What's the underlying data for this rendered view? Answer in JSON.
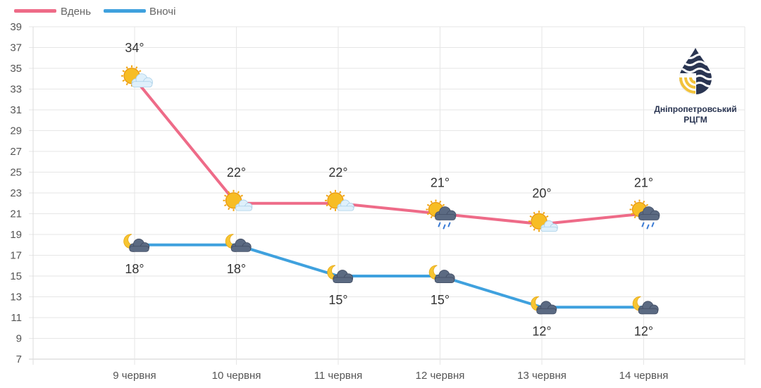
{
  "chart_data": {
    "type": "line",
    "categories": [
      "9 червня",
      "10 червня",
      "11 червня",
      "12 червня",
      "13 червня",
      "14 червня"
    ],
    "series": [
      {
        "name": "Вдень",
        "color": "#ee6b88",
        "values": [
          34,
          22,
          22,
          21,
          20,
          21
        ],
        "labels": [
          "34°",
          "22°",
          "22°",
          "21°",
          "20°",
          "21°"
        ],
        "icons": [
          "sun-cloud-icon",
          "sun-cloud-icon",
          "sun-cloud-icon",
          "sun-rain-cloud-icon",
          "sun-cloud-icon",
          "sun-rain-cloud-icon"
        ]
      },
      {
        "name": "Вночі",
        "color": "#3fa1de",
        "values": [
          18,
          18,
          15,
          15,
          12,
          12
        ],
        "labels": [
          "18°",
          "18°",
          "15°",
          "15°",
          "12°",
          "12°"
        ],
        "icons": [
          "moon-cloud-icon",
          "moon-cloud-icon",
          "moon-cloud-icon",
          "moon-cloud-icon",
          "moon-cloud-icon",
          "moon-cloud-icon"
        ]
      }
    ],
    "yticks": [
      "7",
      "9",
      "11",
      "13",
      "15",
      "17",
      "19",
      "21",
      "23",
      "25",
      "27",
      "29",
      "31",
      "33",
      "35",
      "37",
      "39"
    ],
    "ylim": [
      7,
      39
    ],
    "grid": true,
    "legend": "top-left",
    "title": "",
    "xlabel": "",
    "ylabel": ""
  },
  "logo": {
    "line1": "Дніпропетровський",
    "line2": "РЦГМ",
    "icon": "water-drop-logo-icon"
  }
}
